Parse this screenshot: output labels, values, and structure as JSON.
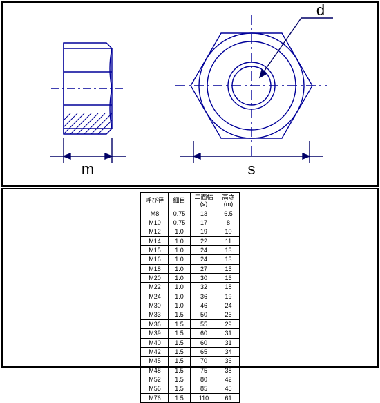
{
  "diagram": {
    "labels": {
      "m": "m",
      "s": "s",
      "d": "d"
    },
    "stroke": "#000099",
    "stroke_width": 1.2,
    "hatch_angle": 45
  },
  "table": {
    "columns": [
      "呼び径",
      "細目",
      "二面幅\n(s)",
      "高さ\n(m)"
    ],
    "rows": [
      [
        "M8",
        "0.75",
        "13",
        "6.5"
      ],
      [
        "M10",
        "0.75",
        "17",
        "8"
      ],
      [
        "M12",
        "1.0",
        "19",
        "10"
      ],
      [
        "M14",
        "1.0",
        "22",
        "11"
      ],
      [
        "M15",
        "1.0",
        "24",
        "13"
      ],
      [
        "M16",
        "1.0",
        "24",
        "13"
      ],
      [
        "M18",
        "1.0",
        "27",
        "15"
      ],
      [
        "M20",
        "1.0",
        "30",
        "16"
      ],
      [
        "M22",
        "1.0",
        "32",
        "18"
      ],
      [
        "M24",
        "1.0",
        "36",
        "19"
      ],
      [
        "M30",
        "1.0",
        "46",
        "24"
      ],
      [
        "M33",
        "1.5",
        "50",
        "26"
      ],
      [
        "M36",
        "1.5",
        "55",
        "29"
      ],
      [
        "M39",
        "1.5",
        "60",
        "31"
      ],
      [
        "M40",
        "1.5",
        "60",
        "31"
      ],
      [
        "M42",
        "1.5",
        "65",
        "34"
      ],
      [
        "M45",
        "1.5",
        "70",
        "36"
      ],
      [
        "M48",
        "1.5",
        "75",
        "38"
      ],
      [
        "M52",
        "1.5",
        "80",
        "42"
      ],
      [
        "M56",
        "1.5",
        "85",
        "45"
      ],
      [
        "M76",
        "1.5",
        "110",
        "61"
      ]
    ]
  }
}
